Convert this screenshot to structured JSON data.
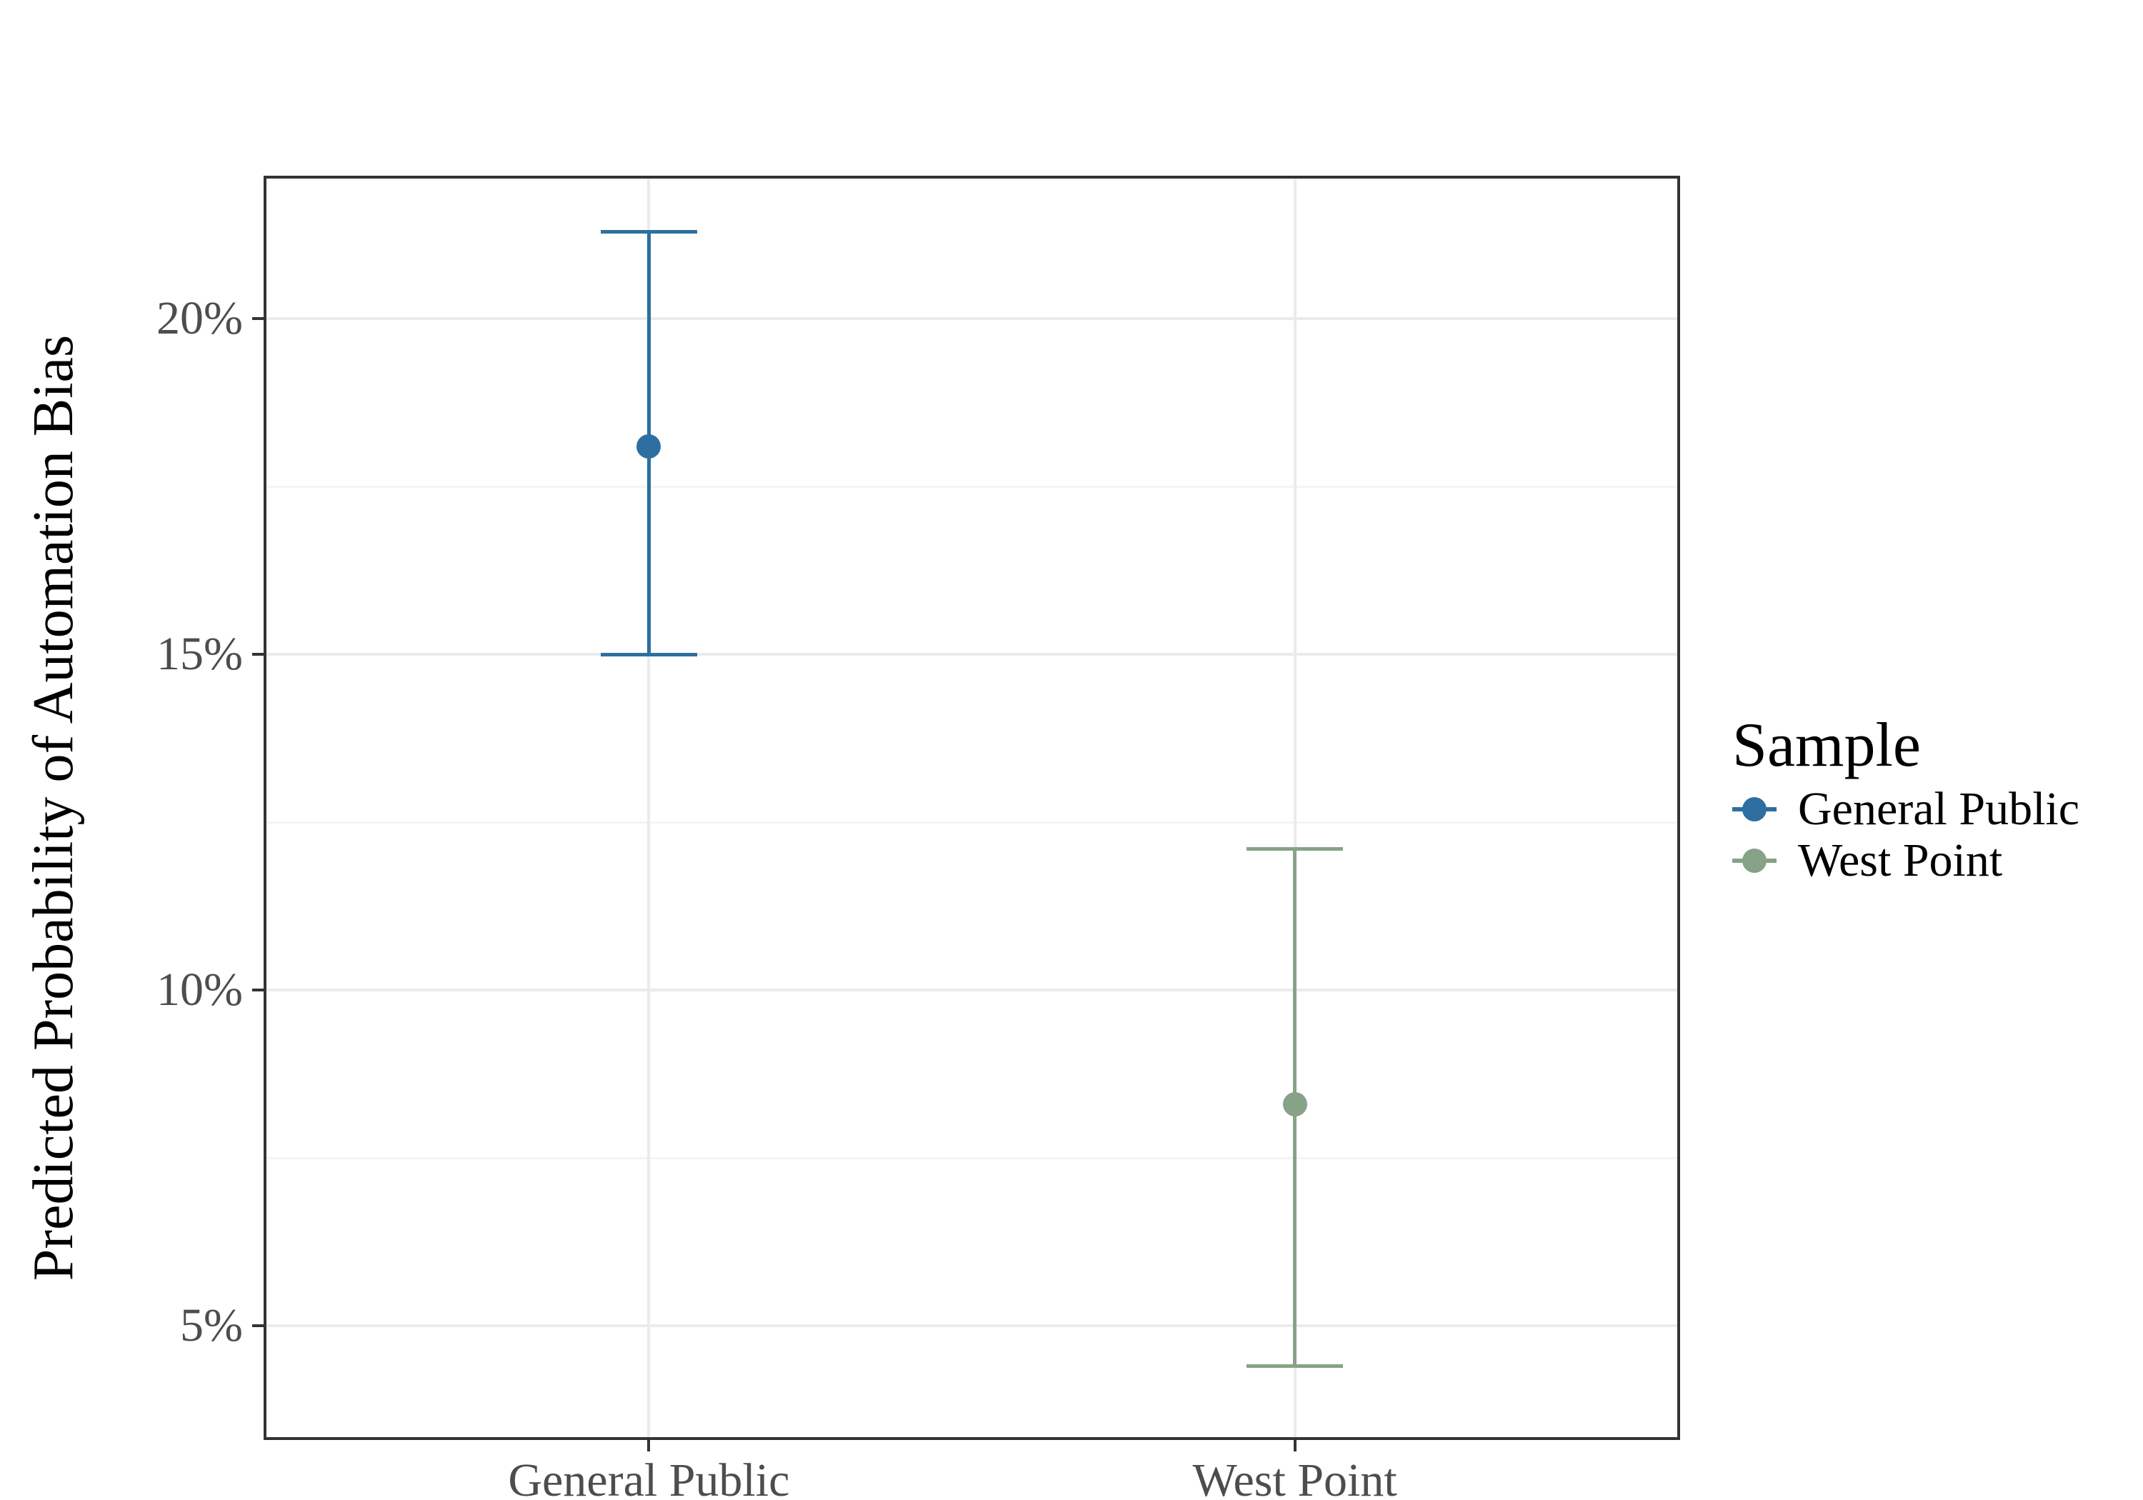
{
  "figure": {
    "y_axis_title": "Predicted Probability of Automation Bias",
    "legend": {
      "title": "Sample",
      "items": [
        {
          "label": "General Public",
          "color": "#2D6FA0"
        },
        {
          "label": "West Point",
          "color": "#87A287"
        }
      ]
    }
  },
  "chart_data": {
    "type": "pointrange",
    "title": "",
    "xlabel": "",
    "ylabel": "Predicted Probability of Automation Bias",
    "categories": [
      "General Public",
      "West Point"
    ],
    "series": [
      {
        "name": "General Public",
        "estimate": 18.1,
        "ci_low": 15.0,
        "ci_high": 21.3,
        "color": "#2D6FA0"
      },
      {
        "name": "West Point",
        "estimate": 8.3,
        "ci_low": 4.4,
        "ci_high": 12.1,
        "color": "#87A287"
      }
    ],
    "y_ticks": [
      {
        "value": 20,
        "label": "20%"
      },
      {
        "value": 15,
        "label": "15%"
      },
      {
        "value": 10,
        "label": "10%"
      },
      {
        "value": 5,
        "label": "5%"
      }
    ],
    "y_minor_ticks": [
      17.5,
      12.5,
      7.5
    ],
    "ylim": [
      3.3,
      22.13
    ],
    "grid": true,
    "legend_position": "right",
    "legend_title": "Sample"
  },
  "style": {
    "grid_major_color": "#EBEBEB",
    "grid_minor_color": "#F4F4F4",
    "panel_border_color": "#333333",
    "tick_color": "#333333",
    "tick_label_color": "#4D4D4D",
    "text_color": "#000000",
    "background": "#FFFFFF"
  }
}
